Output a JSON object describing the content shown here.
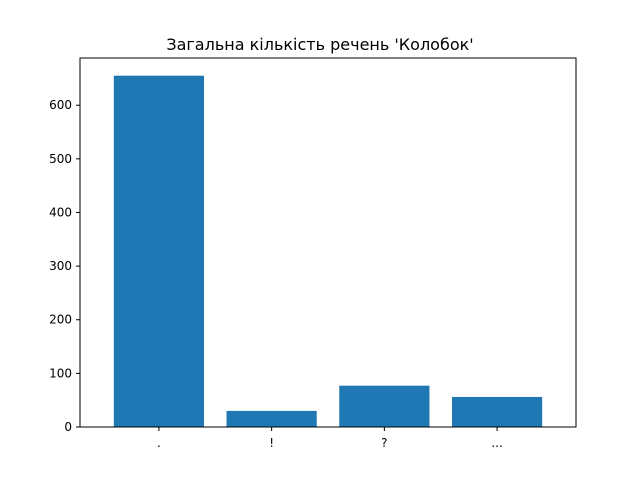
{
  "chart_data": {
    "type": "bar",
    "title": "Загальна кількість речень 'Колобок'",
    "categories": [
      ".",
      "!",
      "?",
      "..."
    ],
    "values": [
      655,
      30,
      77,
      56
    ],
    "xlabel": "",
    "ylabel": "",
    "ylim": [
      0,
      688
    ],
    "yticks": [
      0,
      100,
      200,
      300,
      400,
      500,
      600
    ],
    "bar_color": "#1f77b4",
    "grid": false,
    "legend": "none"
  }
}
